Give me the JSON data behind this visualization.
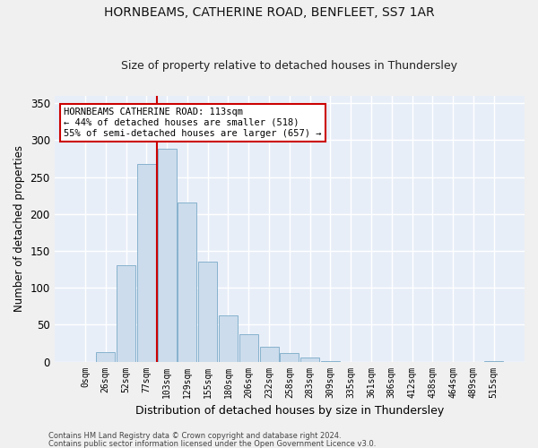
{
  "title1": "HORNBEAMS, CATHERINE ROAD, BENFLEET, SS7 1AR",
  "title2": "Size of property relative to detached houses in Thundersley",
  "xlabel": "Distribution of detached houses by size in Thundersley",
  "ylabel": "Number of detached properties",
  "bar_color": "#ccdcec",
  "bar_edge_color": "#7aaac8",
  "background_color": "#e8eef8",
  "grid_color": "#ffffff",
  "categories": [
    "0sqm",
    "26sqm",
    "52sqm",
    "77sqm",
    "103sqm",
    "129sqm",
    "155sqm",
    "180sqm",
    "206sqm",
    "232sqm",
    "258sqm",
    "283sqm",
    "309sqm",
    "335sqm",
    "361sqm",
    "386sqm",
    "412sqm",
    "438sqm",
    "464sqm",
    "489sqm",
    "515sqm"
  ],
  "bar_heights": [
    0,
    13,
    130,
    268,
    288,
    215,
    135,
    63,
    37,
    20,
    11,
    5,
    1,
    0,
    0,
    0,
    0,
    0,
    0,
    0,
    1
  ],
  "ylim": [
    0,
    360
  ],
  "yticks": [
    0,
    50,
    100,
    150,
    200,
    250,
    300,
    350
  ],
  "property_bin_index": 4,
  "vline_color": "#cc0000",
  "annotation_title": "HORNBEAMS CATHERINE ROAD: 113sqm",
  "annotation_line1": "← 44% of detached houses are smaller (518)",
  "annotation_line2": "55% of semi-detached houses are larger (657) →",
  "annotation_box_color": "#ffffff",
  "annotation_box_edge": "#cc0000",
  "footnote1": "Contains HM Land Registry data © Crown copyright and database right 2024.",
  "footnote2": "Contains public sector information licensed under the Open Government Licence v3.0."
}
